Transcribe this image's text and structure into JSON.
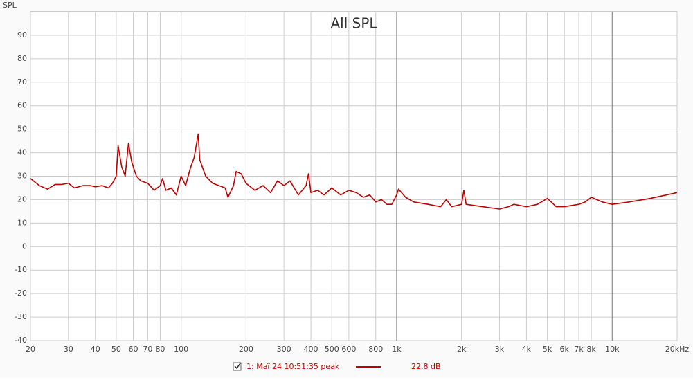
{
  "chart_data": {
    "type": "line",
    "title": "All SPL",
    "y_label": "SPL",
    "xscale": "log",
    "grid": true,
    "xlim": [
      20,
      20000
    ],
    "ylim": [
      -40,
      100
    ],
    "xticks": [
      20,
      30,
      40,
      50,
      60,
      70,
      80,
      100,
      200,
      300,
      400,
      500,
      600,
      800,
      {
        "value": 1000,
        "label": "1k"
      },
      {
        "value": 2000,
        "label": "2k"
      },
      {
        "value": 3000,
        "label": "3k"
      },
      {
        "value": 4000,
        "label": "4k"
      },
      {
        "value": 5000,
        "label": "5k"
      },
      {
        "value": 6000,
        "label": "6k"
      },
      {
        "value": 7000,
        "label": "7k"
      },
      {
        "value": 8000,
        "label": "8k"
      },
      {
        "value": 10000,
        "label": "10k"
      },
      {
        "value": 20000,
        "label": "20kHz"
      }
    ],
    "yticks": [
      -40,
      -30,
      -20,
      -10,
      0,
      10,
      20,
      30,
      40,
      50,
      60,
      70,
      80,
      90
    ],
    "x": [
      20,
      22,
      24,
      26,
      28,
      30,
      32,
      35,
      38,
      40,
      43,
      46,
      48,
      50,
      51,
      53,
      55,
      57,
      59,
      62,
      65,
      70,
      75,
      80,
      82,
      85,
      90,
      95,
      100,
      105,
      110,
      115,
      120,
      122,
      130,
      140,
      150,
      160,
      165,
      175,
      180,
      190,
      200,
      220,
      240,
      260,
      280,
      300,
      320,
      350,
      380,
      390,
      400,
      430,
      460,
      500,
      550,
      600,
      650,
      700,
      750,
      800,
      850,
      900,
      950,
      1000,
      1020,
      1100,
      1200,
      1400,
      1600,
      1700,
      1800,
      2000,
      2050,
      2100,
      2500,
      3000,
      3300,
      3500,
      4000,
      4500,
      5000,
      5500,
      6000,
      7000,
      7500,
      8000,
      9000,
      10000,
      12000,
      15000,
      20000
    ],
    "series": [
      {
        "name": "1: Maï 24 10:51:35 peak",
        "color": "#c00000",
        "legend_value": "22,8 dB",
        "values": [
          29,
          26,
          24.5,
          26.5,
          26.5,
          27,
          25,
          26,
          26,
          25.5,
          26,
          25,
          27,
          30,
          43,
          34,
          30,
          44,
          36,
          30,
          28,
          27,
          24,
          26,
          29,
          24,
          25,
          22,
          30,
          26,
          33,
          38,
          48,
          37,
          30,
          27,
          26,
          25,
          21,
          26,
          32,
          31,
          27,
          24,
          26,
          23,
          28,
          26,
          28,
          22,
          26,
          31,
          23,
          24,
          22,
          25,
          22,
          24,
          23,
          21,
          22,
          19,
          20,
          18,
          18,
          22,
          24.5,
          21,
          19,
          18,
          17,
          20,
          17,
          18,
          24,
          18,
          17,
          16,
          17,
          18,
          17,
          18,
          20.5,
          17,
          17,
          18,
          19,
          21,
          19,
          18,
          19,
          20.5,
          23
        ]
      }
    ]
  }
}
